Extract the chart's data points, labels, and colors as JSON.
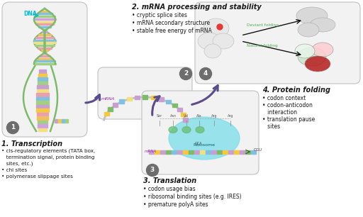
{
  "arrow_color": "#5b4d8a",
  "gray_circle": "#6d6d6d",
  "dna_green": "#7dba6a",
  "dna_cyan": "#00bcd4",
  "bp_colors": [
    "#e91e63",
    "#f8a",
    "#4caf50",
    "#2196f3",
    "#9c27b0",
    "#f5c842",
    "#e91e63",
    "#5bc8f5"
  ],
  "block_colors": [
    "#c8a0d0",
    "#f5c842",
    "#c8a0d0",
    "#7dba6a",
    "#7dba6a",
    "#c8a0d0",
    "#f5c842",
    "#c8a0d0",
    "#7dba6a",
    "#c8a0d0",
    "#f5c842",
    "#c8a0d0",
    "#7dba6a",
    "#c8a0d0"
  ],
  "teal_rib": "#80deea",
  "title2": "2. mRNA processing and stability",
  "bullets2": [
    "• cryptic splice sites",
    "• mRNA secondary structure",
    "• stable free energy of mRNA"
  ],
  "title1": "1. Transcription",
  "bullets1": [
    "• cis-regulatory elements (TATA box,",
    "   termination signal, protein binding",
    "   sites, etc.)",
    "• chi sites",
    "• polymerase slippage sites"
  ],
  "title3": "3. Translation",
  "bullets3": [
    "• codon usage bias",
    "• ribosomal binding sites (e.g. IRES)",
    "• premature polyA sites"
  ],
  "title4": "4. Protein folding",
  "bullets4": [
    "• codon context",
    "• codon-anticodon",
    "   interaction",
    "• translation pause",
    "   sites"
  ]
}
